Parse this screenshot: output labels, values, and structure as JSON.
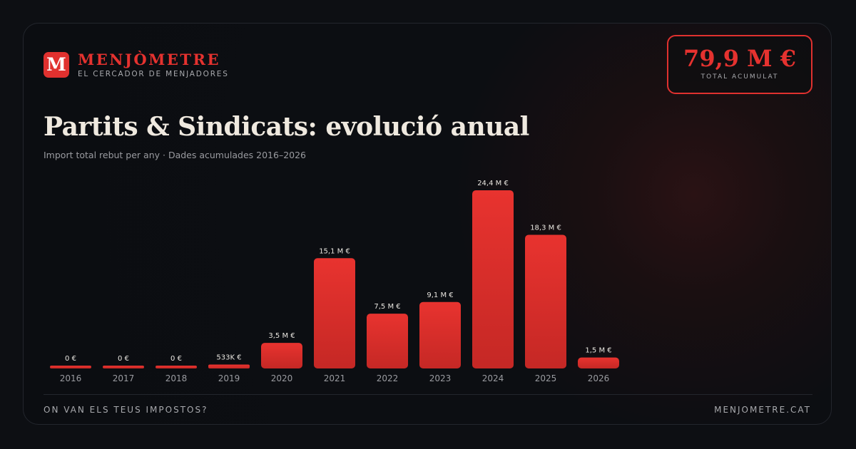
{
  "brand": {
    "logo_letter": "M",
    "name": "MENJÒMETRE",
    "tagline": "EL CERCADOR DE MENJADORES"
  },
  "total": {
    "value": "79,9 M €",
    "label": "TOTAL ACUMULAT"
  },
  "footer": {
    "left": "ON VAN ELS TEUS IMPOSTOS?",
    "right": "MENJOMETRE.CAT"
  },
  "colors": {
    "accent": "#e0312f",
    "bar_top": "#e8332f",
    "bar_bottom": "#c52825",
    "background": "#0d0f13",
    "text": "#efe9df"
  },
  "chart_data": {
    "type": "bar",
    "title": "Partits & Sindicats: evolució anual",
    "subtitle": "Import total rebut per any · Dades acumulades 2016–2026",
    "xlabel": "",
    "ylabel": "",
    "unit": "M €",
    "categories": [
      "2016",
      "2017",
      "2018",
      "2019",
      "2020",
      "2021",
      "2022",
      "2023",
      "2024",
      "2025",
      "2026"
    ],
    "values": [
      0,
      0,
      0,
      0.533,
      3.5,
      15.1,
      7.5,
      9.1,
      24.4,
      18.3,
      1.5
    ],
    "value_labels": [
      "0 €",
      "0 €",
      "0 €",
      "533K €",
      "3,5 M €",
      "15,1 M €",
      "7,5 M €",
      "9,1 M €",
      "24,4 M €",
      "18,3 M €",
      "1,5 M €"
    ],
    "ylim": [
      0,
      24.4
    ],
    "grid": false,
    "legend": "none"
  }
}
